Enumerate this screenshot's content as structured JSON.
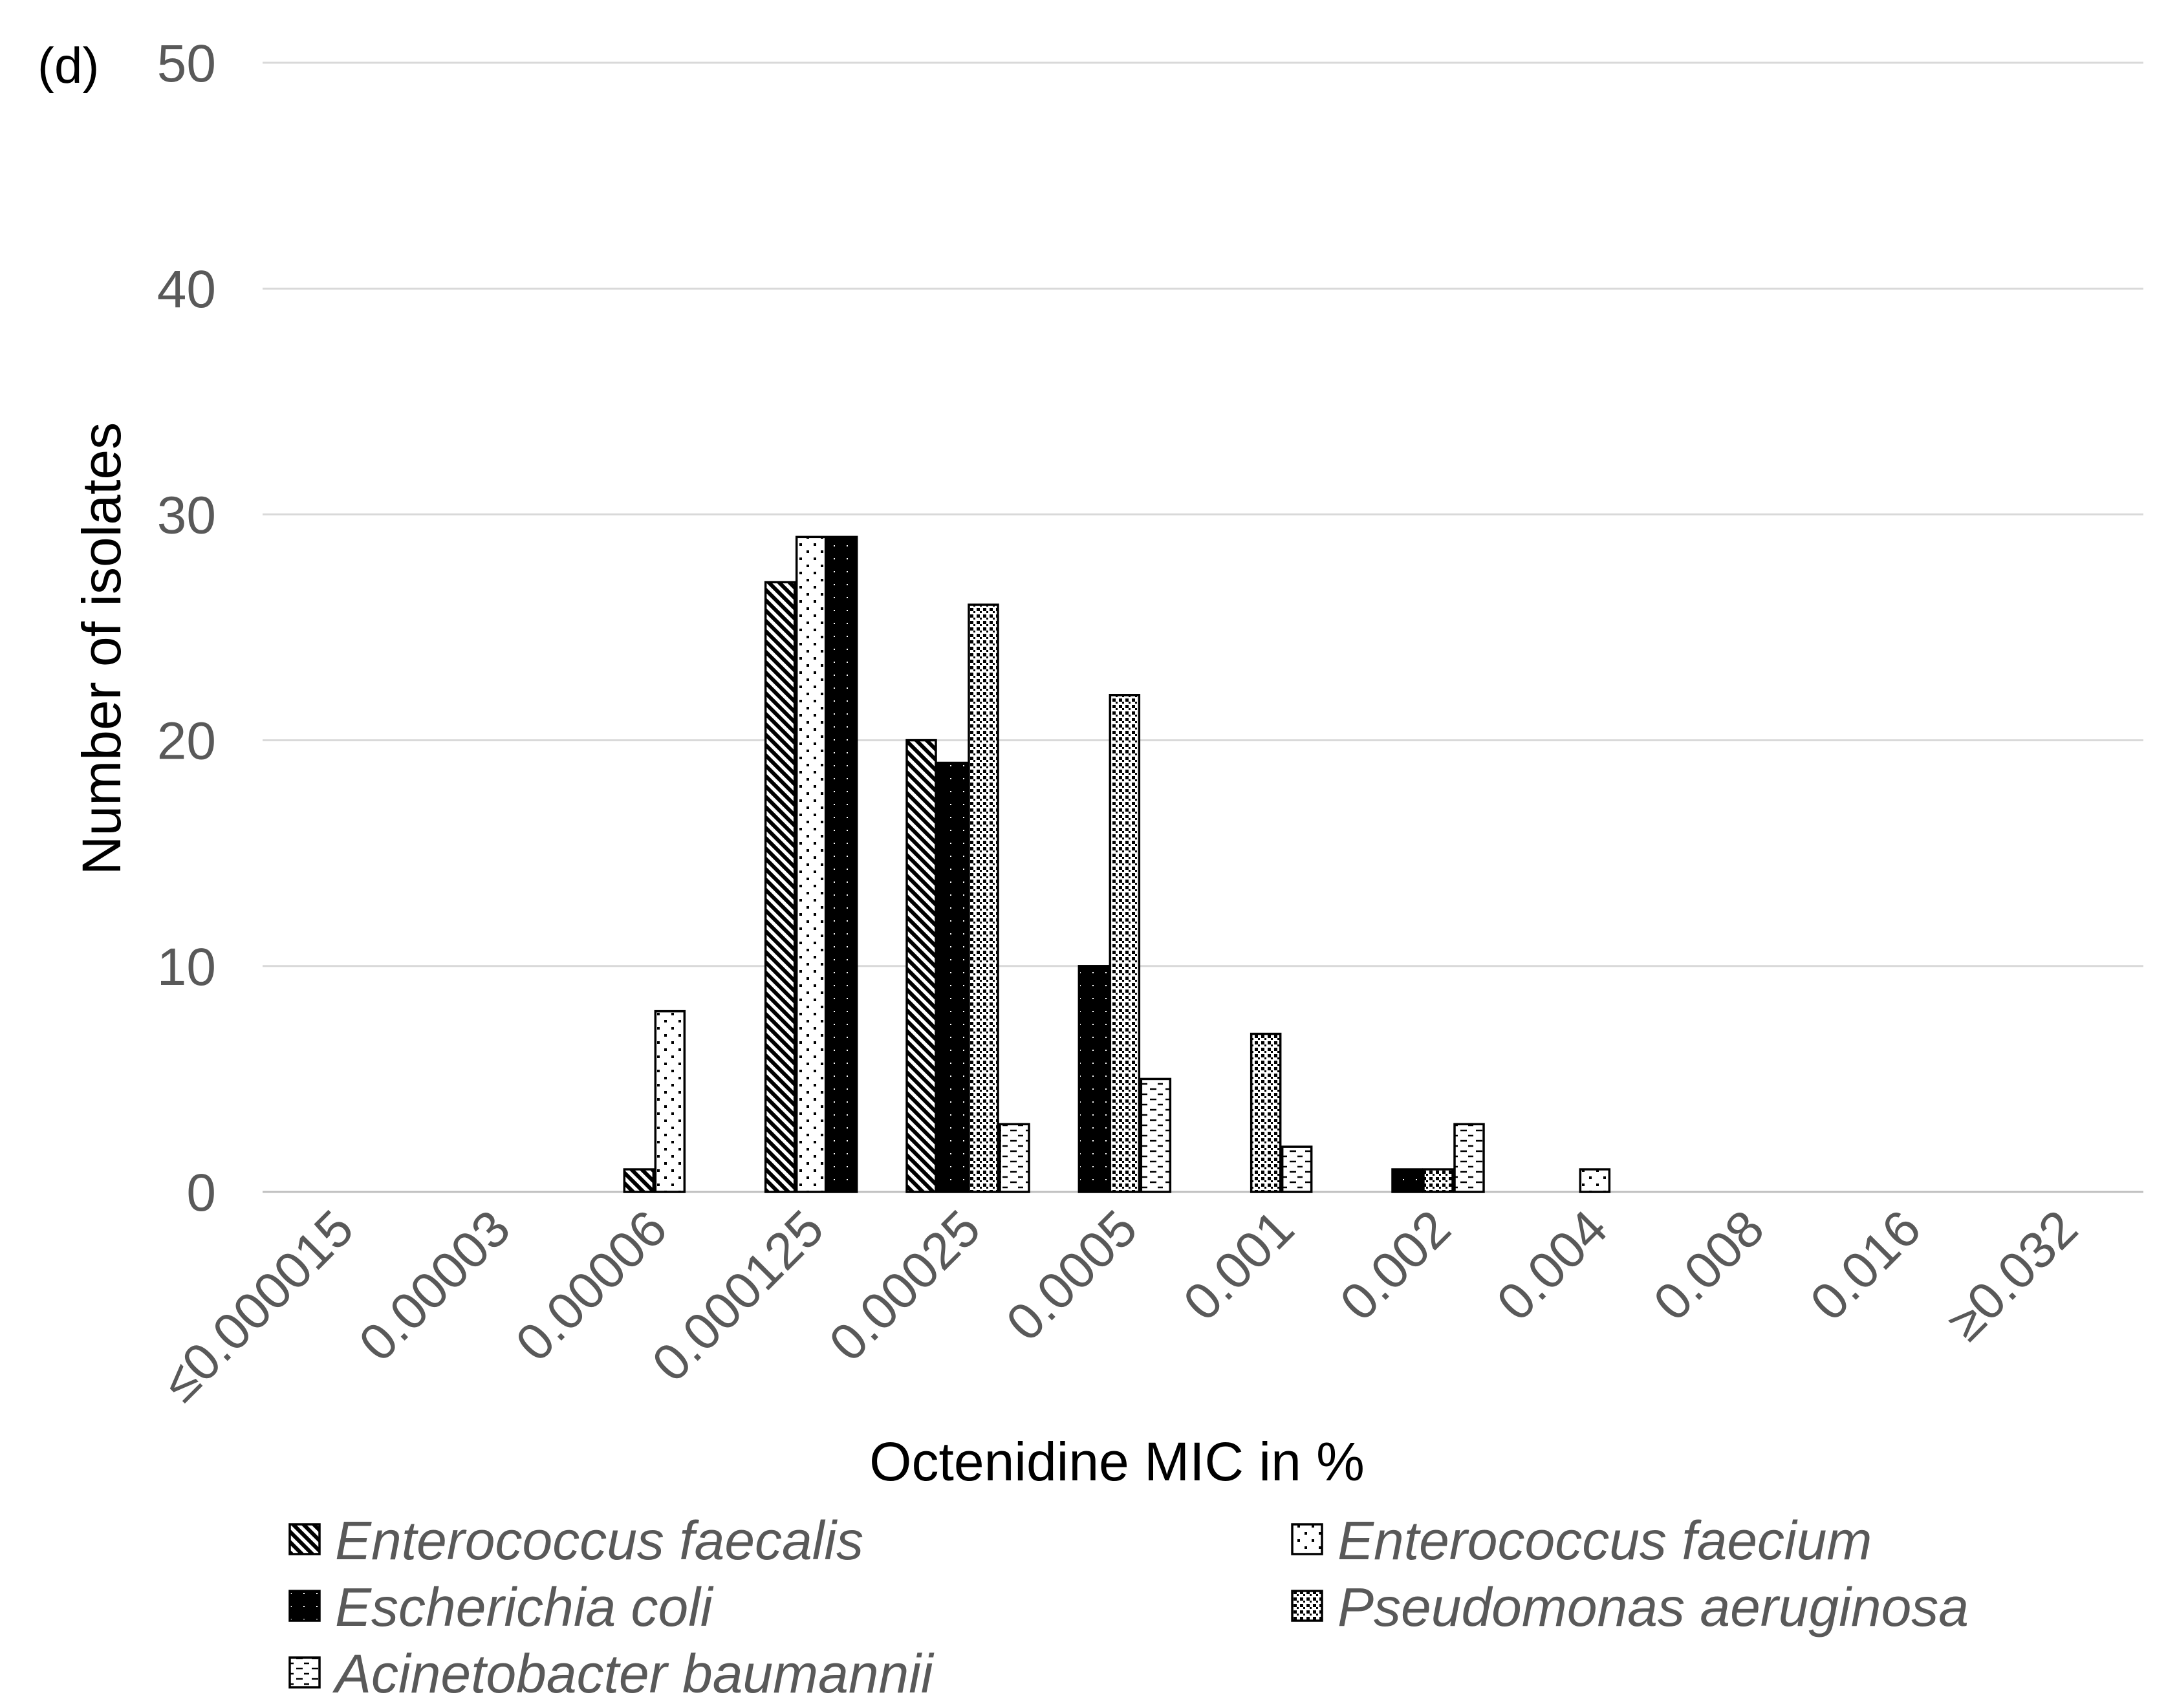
{
  "chart_data": {
    "type": "bar",
    "panel_label": "(d)",
    "xlabel": "Octenidine MIC in %",
    "ylabel": "Number of isolates",
    "ylim": [
      0,
      50
    ],
    "yticks": [
      0,
      10,
      20,
      30,
      40,
      50
    ],
    "grid": true,
    "legend_position": "bottom",
    "categories": [
      "≤0.000015",
      "0.00003",
      "0.00006",
      "0.000125",
      "0.00025",
      "0.0005",
      "0.001",
      "0.002",
      "0.004",
      "0.008",
      "0.016",
      "≥0.032"
    ],
    "series": [
      {
        "name": "Enterococcus faecalis",
        "pattern": "diagonal",
        "values": [
          0,
          0,
          1,
          27,
          20,
          0,
          0,
          0,
          0,
          0,
          0,
          0
        ]
      },
      {
        "name": "Enterococcus faecium",
        "pattern": "sparse-dots",
        "values": [
          0,
          0,
          8,
          29,
          0,
          0,
          0,
          0,
          1,
          0,
          0,
          0
        ]
      },
      {
        "name": "Escherichia coli",
        "pattern": "solid-black",
        "values": [
          0,
          0,
          0,
          29,
          19,
          10,
          0,
          1,
          0,
          0,
          0,
          0
        ]
      },
      {
        "name": "Pseudomonas aeruginosa",
        "pattern": "dense-dots",
        "values": [
          0,
          0,
          0,
          0,
          26,
          22,
          7,
          1,
          0,
          0,
          0,
          0
        ]
      },
      {
        "name": "Acinetobacter baumannii",
        "pattern": "dashes",
        "values": [
          0,
          0,
          0,
          0,
          3,
          5,
          2,
          3,
          0,
          0,
          0,
          0
        ]
      }
    ]
  },
  "colors": {
    "grid": "#d9d9d9",
    "tick_text": "#595959",
    "bar_stroke": "#000000"
  }
}
